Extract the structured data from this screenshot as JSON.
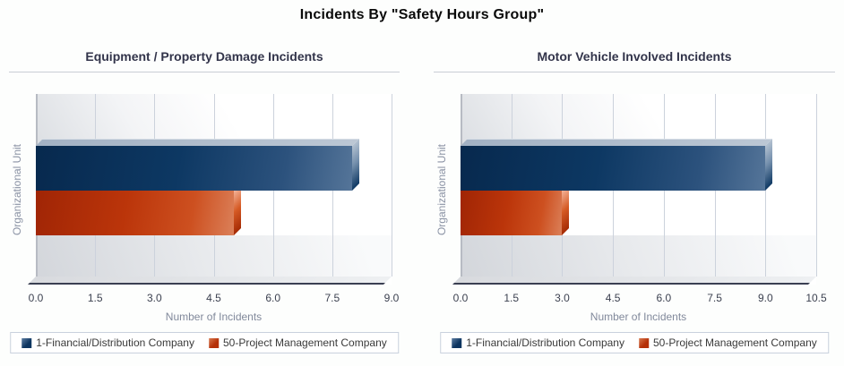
{
  "main_title": "Incidents By \"Safety Hours Group\"",
  "legend": {
    "items": [
      {
        "label": "1-Financial/Distribution Company",
        "color": "#0d3560",
        "color_light": "#5c7da2"
      },
      {
        "label": "50-Project Management Company",
        "color": "#b53008",
        "color_light": "#d8794f"
      }
    ]
  },
  "colors": {
    "bar_blue_dark": "#07294e",
    "bar_blue_light": "#557599",
    "bar_orange_dark": "#a02505",
    "bar_orange_light": "#db8059",
    "gridline": "#ccd2dc",
    "axis_line": "#3a3f52",
    "axis_title_text": "#81899b",
    "tick_text": "#3c4150",
    "chart_title_text": "#32344a"
  },
  "chart_data": [
    {
      "type": "bar",
      "orientation": "horizontal",
      "title": "Equipment / Property Damage Incidents",
      "xlabel": "Number of Incidents",
      "ylabel": "Organizational Unit",
      "xlim": [
        0,
        9
      ],
      "x_ticks": [
        0.0,
        1.5,
        3.0,
        4.5,
        6.0,
        7.5,
        9.0
      ],
      "grid": "vertical",
      "legend_position": "bottom",
      "series": [
        {
          "name": "1-Financial/Distribution Company",
          "value": 8
        },
        {
          "name": "50-Project Management Company",
          "value": 5
        }
      ]
    },
    {
      "type": "bar",
      "orientation": "horizontal",
      "title": "Motor Vehicle Involved Incidents",
      "xlabel": "Number of Incidents",
      "ylabel": "Organizational Unit",
      "xlim": [
        0,
        10.5
      ],
      "x_ticks": [
        0.0,
        1.5,
        3.0,
        4.5,
        6.0,
        7.5,
        9.0,
        10.5
      ],
      "grid": "vertical",
      "legend_position": "bottom",
      "series": [
        {
          "name": "1-Financial/Distribution Company",
          "value": 9
        },
        {
          "name": "50-Project Management Company",
          "value": 3
        }
      ]
    }
  ]
}
